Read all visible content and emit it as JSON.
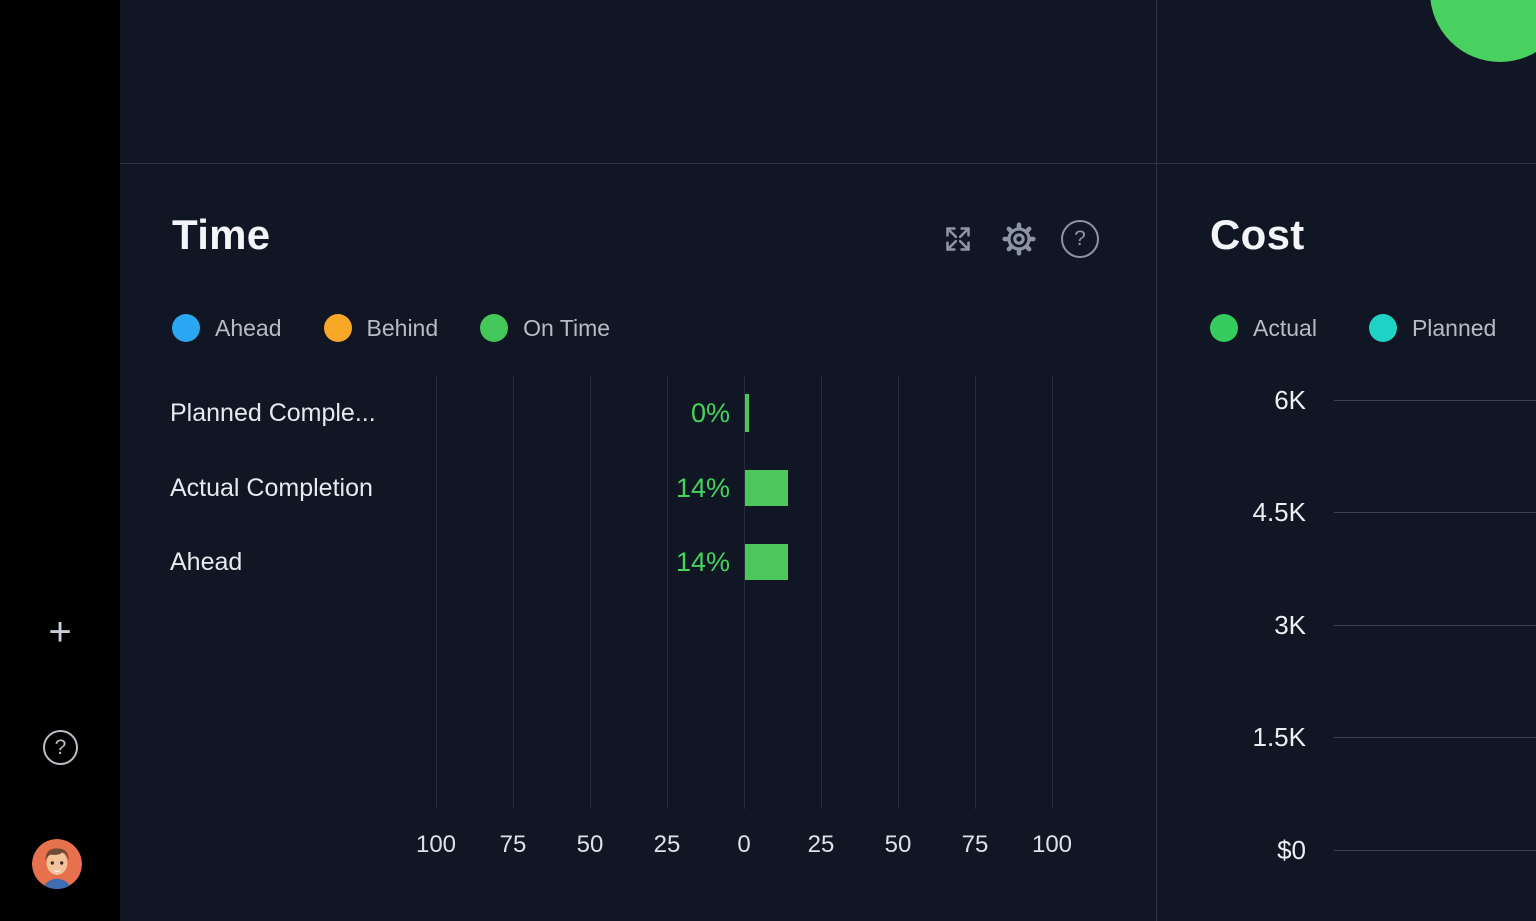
{
  "sidebar": {
    "plus_label": "+",
    "help_label": "?"
  },
  "ui": {
    "help_glyph": "?"
  },
  "time_panel_icons": [
    "expand-icon",
    "settings-icon",
    "help-icon"
  ],
  "chart_data": [
    {
      "id": "time",
      "type": "bar",
      "orientation": "horizontal-diverging",
      "title": "Time",
      "legend": [
        {
          "label": "Ahead",
          "color": "#2ba6f2"
        },
        {
          "label": "Behind",
          "color": "#f8a826"
        },
        {
          "label": "On Time",
          "color": "#42c758"
        }
      ],
      "categories": [
        "Planned Comple...",
        "Actual Completion",
        "Ahead"
      ],
      "values": [
        0,
        14,
        14
      ],
      "value_labels": [
        "0%",
        "14%",
        "14%"
      ],
      "x_ticks": [
        "100",
        "75",
        "50",
        "25",
        "0",
        "25",
        "50",
        "75",
        "100"
      ],
      "xlim": [
        -100,
        100
      ],
      "bar_color": "#4cc85a",
      "value_label_color": "#43d45d",
      "grid": true,
      "legend_position": "top"
    },
    {
      "id": "cost",
      "type": "bar",
      "orientation": "vertical",
      "title": "Cost",
      "legend": [
        {
          "label": "Actual",
          "color": "#35cc5e"
        },
        {
          "label": "Planned",
          "color": "#1ed3c6"
        }
      ],
      "y_ticks": [
        "6K",
        "4.5K",
        "3K",
        "1.5K",
        "$0"
      ],
      "ylim": [
        0,
        6000
      ],
      "grid": true,
      "legend_position": "top"
    }
  ],
  "decor": {
    "corner_circle_color": "#48d15f"
  }
}
